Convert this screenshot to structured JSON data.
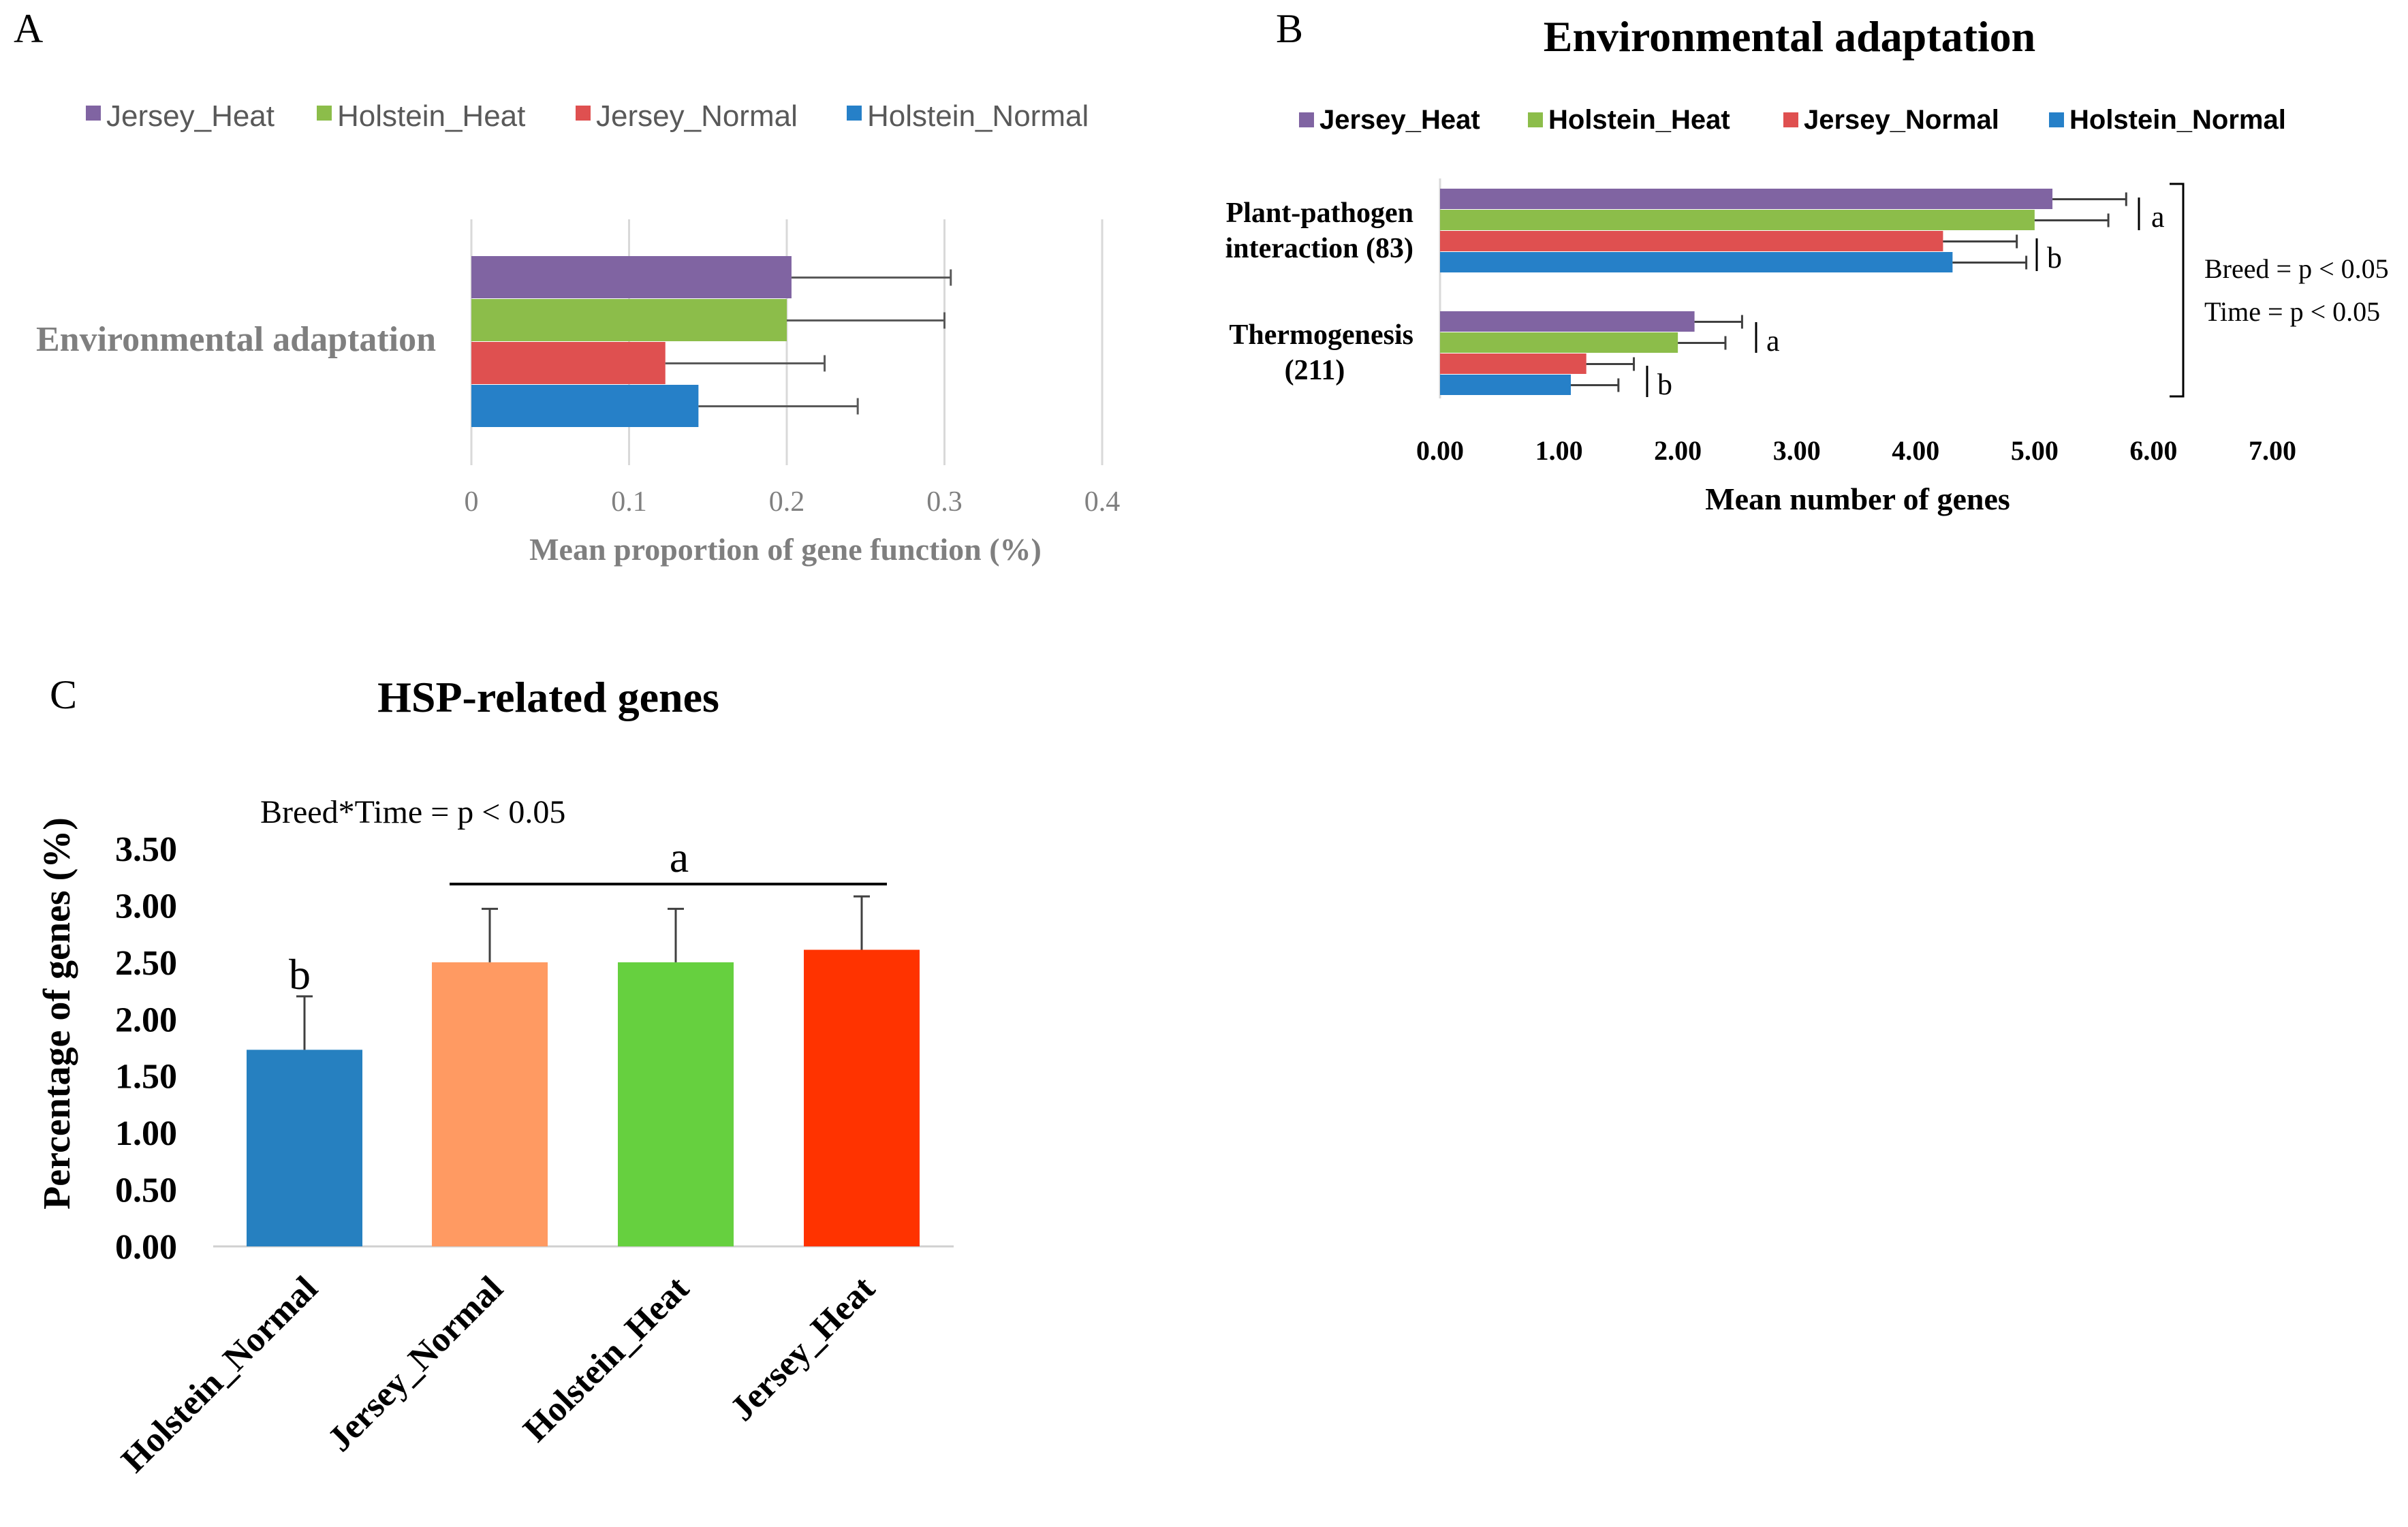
{
  "colors": {
    "jersey_heat_legend": "#8064A2",
    "holstein_heat_legend": "#8CBD4A",
    "jersey_normal_legend": "#DF5050",
    "holstein_normal_legend": "#2680C8",
    "c_holstein_normal": "#2680C0",
    "c_jersey_normal": "#FF9A62",
    "c_holstein_heat": "#66D03F",
    "c_jersey_heat": "#FF3300",
    "gridline": "#d9d9d9",
    "axis_text_gray": "#808080",
    "text_dark": "#000000"
  },
  "chart_data": [
    {
      "panel": "A",
      "panel_label": "A",
      "type": "bar",
      "orientation": "horizontal",
      "title": "",
      "category_label": "Environmental adaptation",
      "legend": [
        "Jersey_Heat",
        "Holstein_Heat",
        "Jersey_Normal",
        "Holstein_Normal"
      ],
      "legend_placement": "top",
      "xlabel": "Mean proportion of gene function (%)",
      "ylabel": "",
      "xlim": [
        0,
        0.4
      ],
      "xticks": [
        "0",
        "0.1",
        "0.2",
        "0.3",
        "0.4"
      ],
      "grid": true,
      "series": [
        {
          "name": "Jersey_Heat",
          "value": 0.203,
          "error": 0.101
        },
        {
          "name": "Holstein_Heat",
          "value": 0.2,
          "error": 0.1
        },
        {
          "name": "Jersey_Normal",
          "value": 0.123,
          "error": 0.101
        },
        {
          "name": "Holstein_Normal",
          "value": 0.144,
          "error": 0.101
        }
      ]
    },
    {
      "panel": "B",
      "panel_label": "B",
      "type": "bar",
      "orientation": "horizontal",
      "title": "Environmental adaptation",
      "legend": [
        "Jersey_Heat",
        "Holstein_Heat",
        "Jersey_Normal",
        "Holstein_Normal"
      ],
      "legend_placement": "top",
      "xlabel": "Mean number of genes",
      "ylabel": "",
      "xlim": [
        0,
        7
      ],
      "xticks": [
        "0.00",
        "1.00",
        "2.00",
        "3.00",
        "4.00",
        "5.00",
        "6.00",
        "7.00"
      ],
      "grid": false,
      "groups": [
        {
          "label_line1": "Plant-pathogen",
          "label_line2": "interaction (83)",
          "series": [
            {
              "name": "Jersey_Heat",
              "value": 5.15,
              "error": 0.62
            },
            {
              "name": "Holstein_Heat",
              "value": 5.0,
              "error": 0.62
            },
            {
              "name": "Jersey_Normal",
              "value": 4.23,
              "error": 0.62
            },
            {
              "name": "Holstein_Normal",
              "value": 4.31,
              "error": 0.62
            }
          ],
          "letter_heat": "a",
          "letter_normal": "b"
        },
        {
          "label_line1": "Thermogenesis",
          "label_line2": "(211)",
          "series": [
            {
              "name": "Jersey_Heat",
              "value": 2.14,
              "error": 0.4
            },
            {
              "name": "Holstein_Heat",
              "value": 2.0,
              "error": 0.4
            },
            {
              "name": "Jersey_Normal",
              "value": 1.23,
              "error": 0.4
            },
            {
              "name": "Holstein_Normal",
              "value": 1.1,
              "error": 0.4
            }
          ],
          "letter_heat": "a",
          "letter_normal": "b"
        }
      ],
      "annotation_breed": "Breed = p < 0.05",
      "annotation_time": "Time = p < 0.05"
    },
    {
      "panel": "C",
      "panel_label": "C",
      "type": "bar",
      "orientation": "vertical",
      "title": "HSP-related genes",
      "annotation": "Breed*Time = p < 0.05",
      "categories": [
        "Holstein_Normal",
        "Jersey_Normal",
        "Holstein_Heat",
        "Jersey_Heat"
      ],
      "values": [
        1.73,
        2.5,
        2.5,
        2.61
      ],
      "errors": [
        0.47,
        0.47,
        0.47,
        0.47
      ],
      "letters": [
        "b",
        "a"
      ],
      "xlabel": "",
      "ylabel": "Percentage of genes (%)",
      "ylim": [
        0,
        3.5
      ],
      "yticks": [
        "0.00",
        "0.50",
        "1.00",
        "1.50",
        "2.00",
        "2.50",
        "3.00",
        "3.50"
      ],
      "grid": false
    }
  ]
}
